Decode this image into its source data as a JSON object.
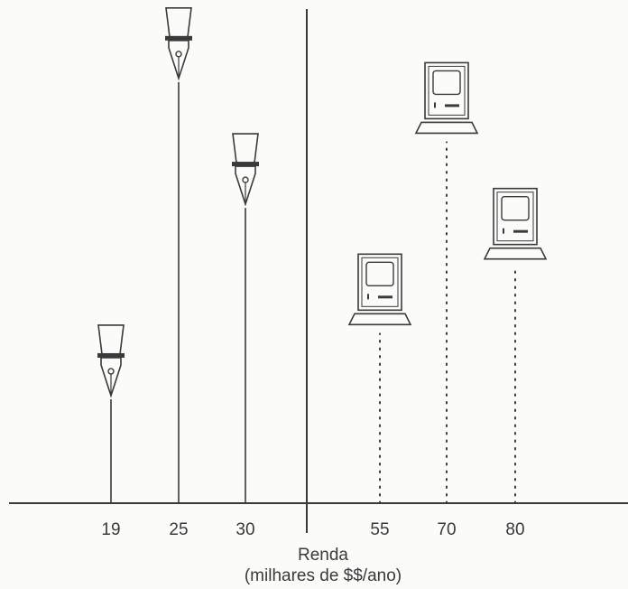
{
  "chart_data": {
    "type": "scatter",
    "xlabel": "Renda",
    "xlabel_line2": "(milhares de $$/ano)",
    "ylabel": "",
    "title": "",
    "grid": false,
    "legend": "none",
    "x_ticks": [
      "19",
      "25",
      "30",
      "55",
      "70",
      "80"
    ],
    "series": [
      {
        "icon": "fountain-pen-icon",
        "line_style": "solid",
        "points": [
          {
            "x": 19,
            "y": 0.95
          },
          {
            "x": 25,
            "y": 3.85
          },
          {
            "x": 30,
            "y": 2.7
          }
        ]
      },
      {
        "icon": "computer-icon",
        "line_style": "dotted",
        "points": [
          {
            "x": 55,
            "y": 1.55
          },
          {
            "x": 70,
            "y": 3.3
          },
          {
            "x": 80,
            "y": 2.15
          }
        ]
      }
    ],
    "ylim": [
      0,
      4.6
    ]
  },
  "colors": {
    "ink": "#3a3a3a",
    "background": "#fbfbf9"
  }
}
